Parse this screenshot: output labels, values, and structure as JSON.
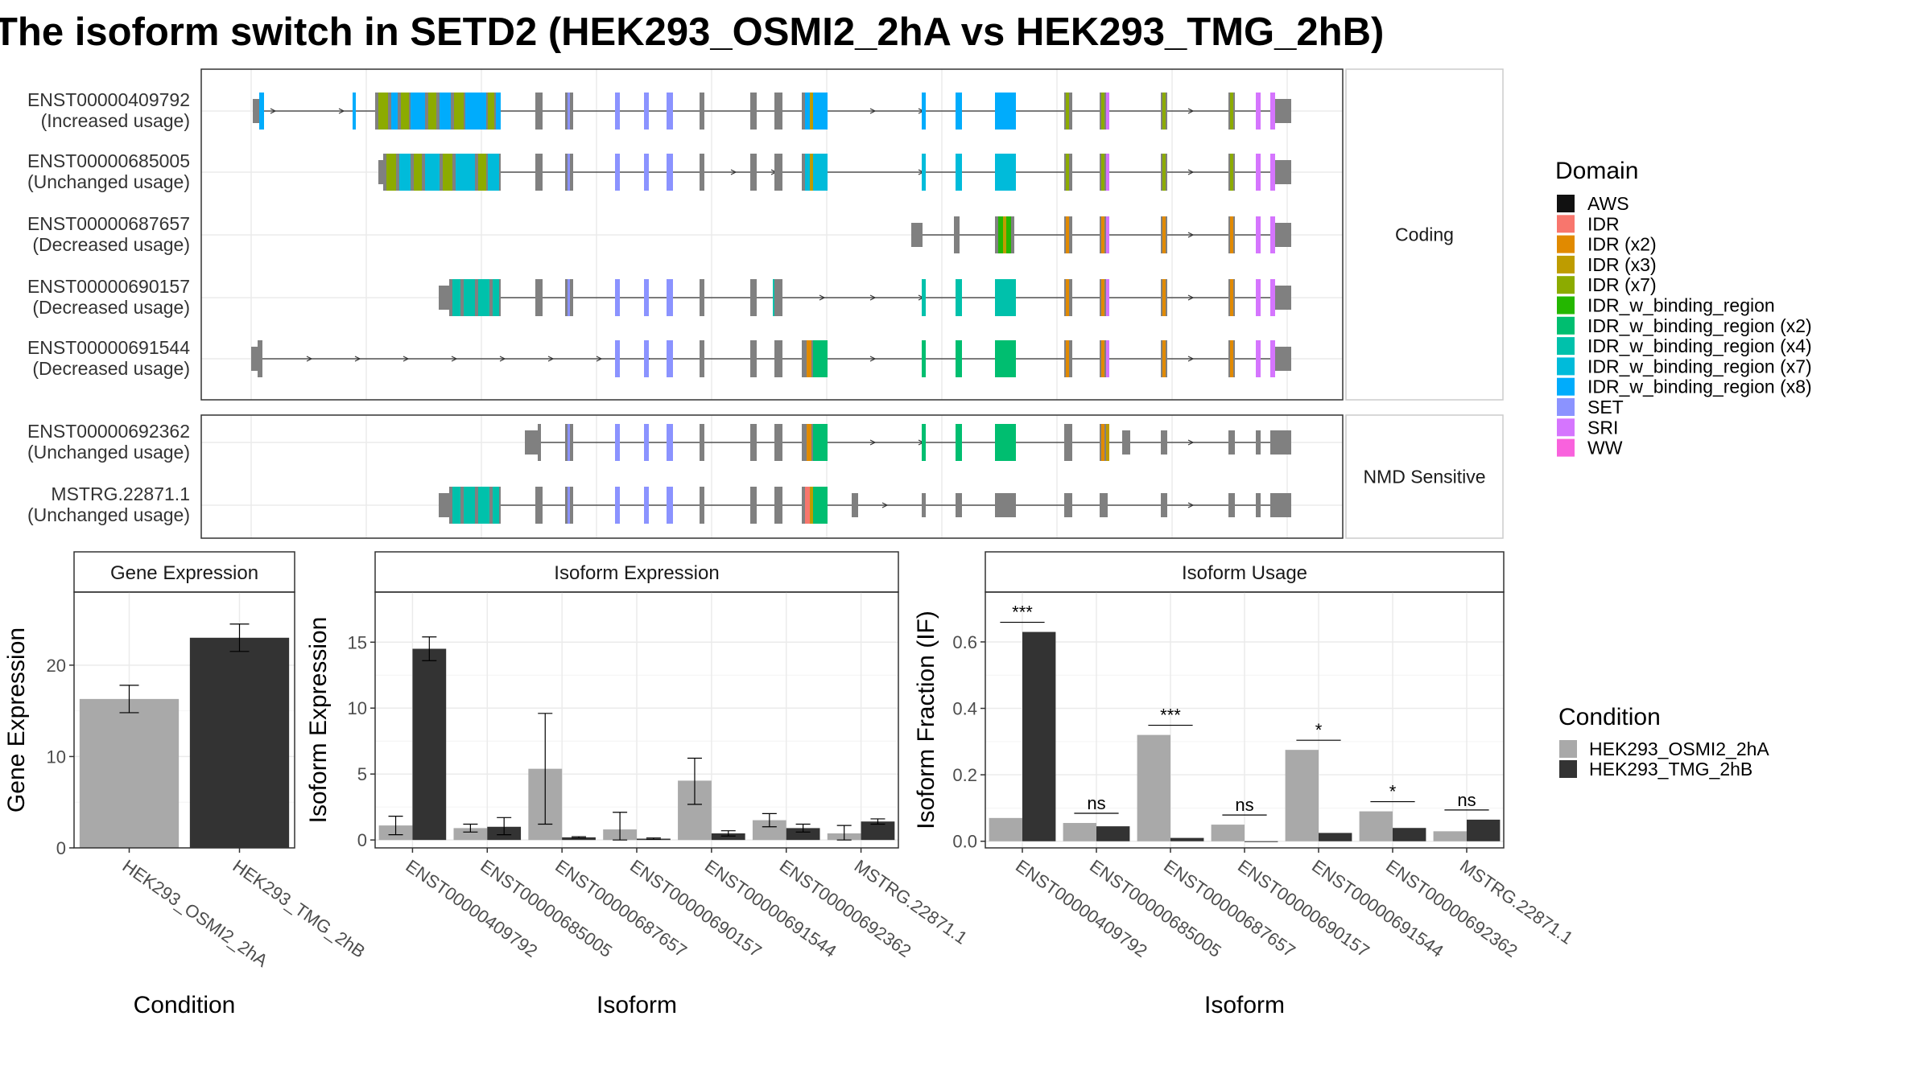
{
  "title": "The isoform switch in SETD2 (HEK293_OSMI2_2hA vs HEK293_TMG_2hB)",
  "domain_legend": {
    "title": "Domain",
    "items": [
      {
        "label": "AWS",
        "color": "#111111"
      },
      {
        "label": "IDR",
        "color": "#F8766D"
      },
      {
        "label": "IDR (x2)",
        "color": "#E18A00"
      },
      {
        "label": "IDR (x3)",
        "color": "#BE9C00"
      },
      {
        "label": "IDR (x7)",
        "color": "#8CAB00"
      },
      {
        "label": "IDR_w_binding_region",
        "color": "#24B700"
      },
      {
        "label": "IDR_w_binding_region (x2)",
        "color": "#00BE70"
      },
      {
        "label": "IDR_w_binding_region (x4)",
        "color": "#00C1AB"
      },
      {
        "label": "IDR_w_binding_region (x7)",
        "color": "#00BBDA"
      },
      {
        "label": "IDR_w_binding_region (x8)",
        "color": "#00ACFC"
      },
      {
        "label": "SET",
        "color": "#8B93FF"
      },
      {
        "label": "SRI",
        "color": "#D575FE"
      },
      {
        "label": "WW",
        "color": "#F962DD"
      }
    ]
  },
  "condition_legend": {
    "title": "Condition",
    "items": [
      {
        "label": "HEK293_OSMI2_2hA",
        "color": "#A9A9A9"
      },
      {
        "label": "HEK293_TMG_2hB",
        "color": "#333333"
      }
    ]
  },
  "structure_panels": [
    {
      "strip": "Coding",
      "rows": [
        {
          "name": "ENST00000409792",
          "usage": "(Increased usage)"
        },
        {
          "name": "ENST00000685005",
          "usage": "(Unchanged usage)"
        },
        {
          "name": "ENST00000687657",
          "usage": "(Decreased usage)"
        },
        {
          "name": "ENST00000690157",
          "usage": "(Decreased usage)"
        },
        {
          "name": "ENST00000691544",
          "usage": "(Decreased usage)"
        }
      ]
    },
    {
      "strip": "NMD Sensitive",
      "rows": [
        {
          "name": "ENST00000692362",
          "usage": "(Unchanged usage)"
        },
        {
          "name": "MSTRG.22871.1",
          "usage": "(Unchanged usage)"
        }
      ]
    }
  ],
  "chart_data": [
    {
      "type": "bar",
      "title": "Gene Expression",
      "xlabel": "Condition",
      "ylabel": "Gene Expression",
      "categories": [
        "HEK293_OSMI2_2hA",
        "HEK293_TMG_2hB"
      ],
      "values": [
        16.3,
        23.0
      ],
      "errors": [
        [
          14.8,
          17.8
        ],
        [
          21.5,
          24.5
        ]
      ],
      "ylim": [
        0,
        28
      ],
      "yticks": [
        0,
        10,
        20
      ]
    },
    {
      "type": "bar",
      "title": "Isoform Expression",
      "xlabel": "Isoform",
      "ylabel": "Isoform Expression",
      "categories": [
        "ENST00000409792",
        "ENST00000685005",
        "ENST00000687657",
        "ENST00000690157",
        "ENST00000691544",
        "ENST00000692362",
        "MSTRG.22871.1"
      ],
      "series": [
        {
          "name": "HEK293_OSMI2_2hA",
          "values": [
            1.1,
            0.9,
            5.4,
            0.8,
            4.5,
            1.5,
            0.5
          ],
          "errors": [
            [
              0.4,
              1.8
            ],
            [
              0.6,
              1.2
            ],
            [
              1.2,
              9.6
            ],
            [
              0.0,
              2.1
            ],
            [
              2.7,
              6.2
            ],
            [
              1.0,
              2.0
            ],
            [
              0.0,
              1.1
            ]
          ]
        },
        {
          "name": "HEK293_TMG_2hB",
          "values": [
            14.5,
            1.0,
            0.2,
            0.1,
            0.5,
            0.9,
            1.4
          ],
          "errors": [
            [
              13.6,
              15.4
            ],
            [
              0.4,
              1.7
            ],
            [
              0.15,
              0.25
            ],
            [
              0.05,
              0.15
            ],
            [
              0.3,
              0.7
            ],
            [
              0.6,
              1.2
            ],
            [
              1.2,
              1.6
            ]
          ]
        }
      ],
      "ylim": [
        -0.6,
        18.8
      ],
      "yticks": [
        0,
        5,
        10,
        15
      ]
    },
    {
      "type": "bar",
      "title": "Isoform Usage",
      "xlabel": "Isoform",
      "ylabel": "Isoform Fraction (IF)",
      "categories": [
        "ENST00000409792",
        "ENST00000685005",
        "ENST00000687657",
        "ENST00000690157",
        "ENST00000691544",
        "ENST00000692362",
        "MSTRG.22871.1"
      ],
      "series": [
        {
          "name": "HEK293_OSMI2_2hA",
          "values": [
            0.07,
            0.055,
            0.32,
            0.05,
            0.275,
            0.09,
            0.03
          ]
        },
        {
          "name": "HEK293_TMG_2hB",
          "values": [
            0.63,
            0.045,
            0.01,
            0.0,
            0.025,
            0.04,
            0.065
          ]
        }
      ],
      "significance": [
        "***",
        "ns",
        "***",
        "ns",
        "*",
        "*",
        "ns"
      ],
      "ylim": [
        -0.02,
        0.75
      ],
      "yticks": [
        0.0,
        0.2,
        0.4,
        0.6
      ]
    }
  ]
}
